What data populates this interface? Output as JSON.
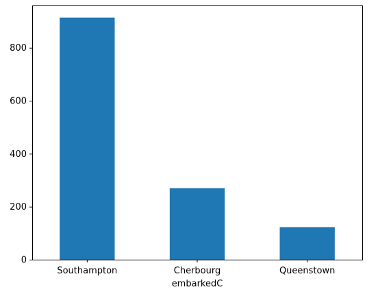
{
  "chart_data": {
    "type": "bar",
    "title": "",
    "xlabel": "embarkedC",
    "ylabel": "",
    "categories": [
      "Southampton",
      "Cherbourg",
      "Queenstown"
    ],
    "values": [
      914,
      270,
      123
    ],
    "ylim": [
      0,
      959.7
    ],
    "yticks": [
      0,
      200,
      400,
      600,
      800
    ],
    "grid": false,
    "legend": "none",
    "colors": {
      "bar": "#1f77b4",
      "axis": "#000000",
      "background": "#ffffff"
    }
  }
}
